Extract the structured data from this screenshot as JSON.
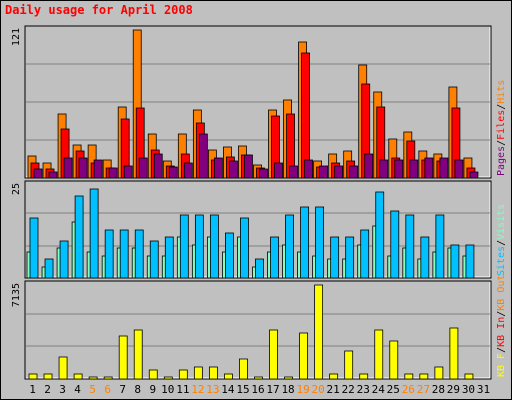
{
  "title": "Daily usage for April 2008",
  "colors": {
    "hits": "#ff8000",
    "files": "#ff0000",
    "pages": "#800080",
    "sites": "#00c0ff",
    "visits": "#80ffc0",
    "kb_in": "#ff0000",
    "kb_out": "#ff8000",
    "kb_f": "#ffff00",
    "weekend_label": "#ff8000",
    "plot_bg": "#c0c0c0",
    "grid": "#808080"
  },
  "chart_data": [
    {
      "type": "bar",
      "name": "Pages / Files / Hits",
      "max_label": "121",
      "legend": [
        "Pages",
        "/",
        "Files",
        "/",
        "Hits"
      ],
      "days": [
        1,
        2,
        3,
        4,
        5,
        6,
        7,
        8,
        9,
        10,
        11,
        12,
        13,
        14,
        15,
        16,
        17,
        18,
        19,
        20,
        21,
        22,
        23,
        24,
        25,
        26,
        27,
        28,
        29,
        30,
        31
      ],
      "series": [
        {
          "name": "Hits",
          "values": [
            18,
            12,
            52,
            27,
            27,
            15,
            58,
            121,
            36,
            14,
            36,
            56,
            23,
            25,
            26,
            11,
            56,
            64,
            111,
            14,
            20,
            22,
            92,
            70,
            32,
            38,
            22,
            20,
            74,
            16,
            0
          ]
        },
        {
          "name": "Files",
          "values": [
            12,
            7,
            40,
            22,
            12,
            8,
            48,
            57,
            23,
            10,
            20,
            45,
            15,
            17,
            19,
            8,
            51,
            52,
            102,
            9,
            12,
            14,
            77,
            58,
            16,
            30,
            15,
            14,
            57,
            8,
            0
          ]
        },
        {
          "name": "Pages",
          "values": [
            7,
            5,
            16,
            16,
            15,
            8,
            10,
            16,
            20,
            9,
            12,
            36,
            16,
            14,
            19,
            7,
            12,
            10,
            15,
            10,
            10,
            10,
            20,
            15,
            15,
            15,
            16,
            16,
            15,
            5,
            0
          ]
        }
      ],
      "ylim": [
        0,
        121
      ]
    },
    {
      "type": "bar",
      "name": "Sites / Visits",
      "max_label": "25",
      "legend": [
        "Sites",
        "/",
        "Visits"
      ],
      "days": [
        1,
        2,
        3,
        4,
        5,
        6,
        7,
        8,
        9,
        10,
        11,
        12,
        13,
        14,
        15,
        16,
        17,
        18,
        19,
        20,
        21,
        22,
        23,
        24,
        25,
        26,
        27,
        28,
        29,
        30,
        31
      ],
      "series": [
        {
          "name": "Visits",
          "values": [
            7,
            3,
            8,
            15,
            7,
            6,
            8,
            8,
            6,
            6,
            11,
            9,
            11,
            7,
            11,
            3,
            7,
            9,
            7,
            6,
            5,
            5,
            9,
            14,
            6,
            8,
            5,
            7,
            8,
            6,
            0
          ]
        },
        {
          "name": "Sites",
          "values": [
            16,
            5,
            10,
            22,
            24,
            13,
            13,
            13,
            10,
            11,
            17,
            17,
            17,
            12,
            16,
            5,
            11,
            17,
            19,
            19,
            11,
            11,
            13,
            23,
            18,
            17,
            11,
            17,
            9,
            9,
            0
          ]
        }
      ],
      "ylim": [
        0,
        25
      ]
    },
    {
      "type": "bar",
      "name": "KB F / KB In / KB Out",
      "max_label": "7135",
      "legend": [
        "KB F",
        "/",
        "KB In",
        "/",
        "KB Out"
      ],
      "days": [
        1,
        2,
        3,
        4,
        5,
        6,
        7,
        8,
        9,
        10,
        11,
        12,
        13,
        14,
        15,
        16,
        17,
        18,
        19,
        20,
        21,
        22,
        23,
        24,
        25,
        26,
        27,
        28,
        29,
        30,
        31
      ],
      "series": [
        {
          "name": "KB F",
          "values": [
            400,
            400,
            1700,
            400,
            150,
            150,
            3300,
            3700,
            700,
            180,
            700,
            900,
            900,
            400,
            1500,
            150,
            3700,
            150,
            3500,
            7135,
            400,
            2100,
            400,
            3700,
            2900,
            400,
            400,
            900,
            3900,
            400,
            0
          ]
        }
      ],
      "ylim": [
        0,
        7135
      ]
    }
  ]
}
